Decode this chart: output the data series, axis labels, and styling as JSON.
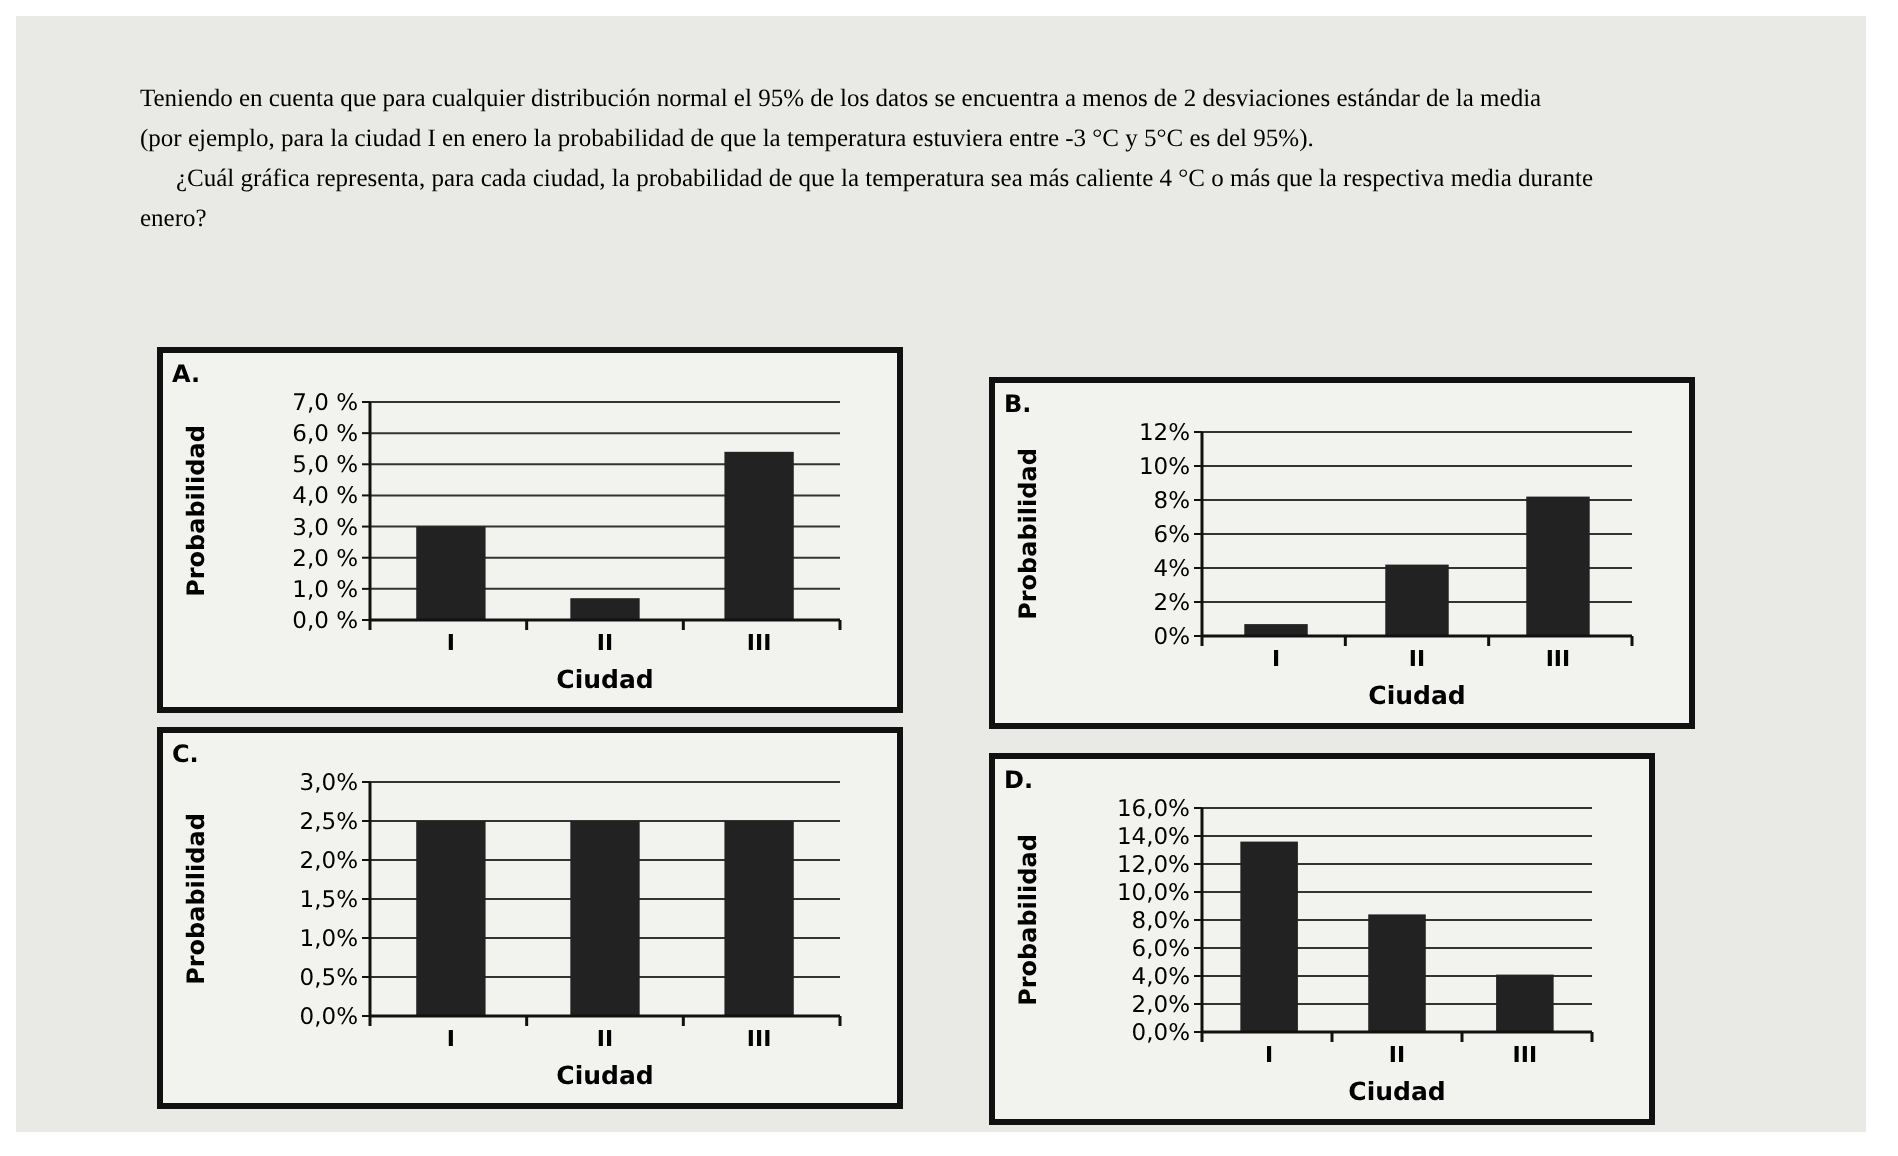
{
  "chart_data": [
    {
      "type": "other",
      "annotations": [
        "Teniendo en cuenta que para cualquier distribución normal el 95% de los datos se encuentra a menos de 2 desviaciones estándar de la media",
        "(por ejemplo, para la ciudad I en enero la probabilidad de que la temperatura estuviera entre -3 °C y 5°C es del 95%).",
        "¿Cuál gráfica representa, para cada ciudad, la probabilidad de que la temperatura sea más caliente 4 °C o más que la respectiva media durante",
        "enero?"
      ]
    },
    {
      "type": "bar",
      "title": "A.",
      "xlabel": "Ciudad",
      "ylabel": "Probabilidad",
      "categories": [
        "I",
        "II",
        "III"
      ],
      "values": [
        3.0,
        0.7,
        5.4
      ],
      "color": "#222222",
      "ylim": [
        0,
        7
      ],
      "yticks": [
        {
          "value": 0,
          "label": "0,0 %"
        },
        {
          "value": 1,
          "label": "1,0 %"
        },
        {
          "value": 2,
          "label": "2,0 %"
        },
        {
          "value": 3,
          "label": "3,0 %"
        },
        {
          "value": 4,
          "label": "4,0 %"
        },
        {
          "value": 5,
          "label": "5,0 %"
        },
        {
          "value": 6,
          "label": "6,0 %"
        },
        {
          "value": 7,
          "label": "7,0 %"
        }
      ],
      "grid": "y"
    },
    {
      "type": "bar",
      "title": "B.",
      "xlabel": "Ciudad",
      "ylabel": "Probabilidad",
      "categories": [
        "I",
        "II",
        "III"
      ],
      "values": [
        0.7,
        4.2,
        8.2
      ],
      "color": "#222222",
      "ylim": [
        0,
        12
      ],
      "yticks": [
        {
          "value": 0,
          "label": "0%"
        },
        {
          "value": 2,
          "label": "2%"
        },
        {
          "value": 4,
          "label": "4%"
        },
        {
          "value": 6,
          "label": "6%"
        },
        {
          "value": 8,
          "label": "8%"
        },
        {
          "value": 10,
          "label": "10%"
        },
        {
          "value": 12,
          "label": "12%"
        }
      ],
      "grid": "y"
    },
    {
      "type": "bar",
      "title": "C.",
      "xlabel": "Ciudad",
      "ylabel": "Probabilidad",
      "categories": [
        "I",
        "II",
        "III"
      ],
      "values": [
        2.5,
        2.5,
        2.5
      ],
      "color": "#222222",
      "ylim": [
        0,
        3
      ],
      "yticks": [
        {
          "value": 0,
          "label": "0,0%"
        },
        {
          "value": 0.5,
          "label": "0,5%"
        },
        {
          "value": 1,
          "label": "1,0%"
        },
        {
          "value": 1.5,
          "label": "1,5%"
        },
        {
          "value": 2,
          "label": "2,0%"
        },
        {
          "value": 2.5,
          "label": "2,5%"
        },
        {
          "value": 3,
          "label": "3,0%"
        }
      ],
      "grid": "y"
    },
    {
      "type": "bar",
      "title": "D.",
      "xlabel": "Ciudad",
      "ylabel": "Probabilidad",
      "categories": [
        "I",
        "II",
        "III"
      ],
      "values": [
        13.6,
        8.4,
        4.1
      ],
      "color": "#222222",
      "ylim": [
        0,
        16
      ],
      "yticks": [
        {
          "value": 0,
          "label": "0,0%"
        },
        {
          "value": 2,
          "label": "2,0%"
        },
        {
          "value": 4,
          "label": "4,0%"
        },
        {
          "value": 6,
          "label": "6,0%"
        },
        {
          "value": 8,
          "label": "8,0%"
        },
        {
          "value": 10,
          "label": "10,0%"
        },
        {
          "value": 12,
          "label": "12,0%"
        },
        {
          "value": 14,
          "label": "14,0%"
        },
        {
          "value": 16,
          "label": "16,0%"
        }
      ],
      "grid": "y"
    }
  ]
}
